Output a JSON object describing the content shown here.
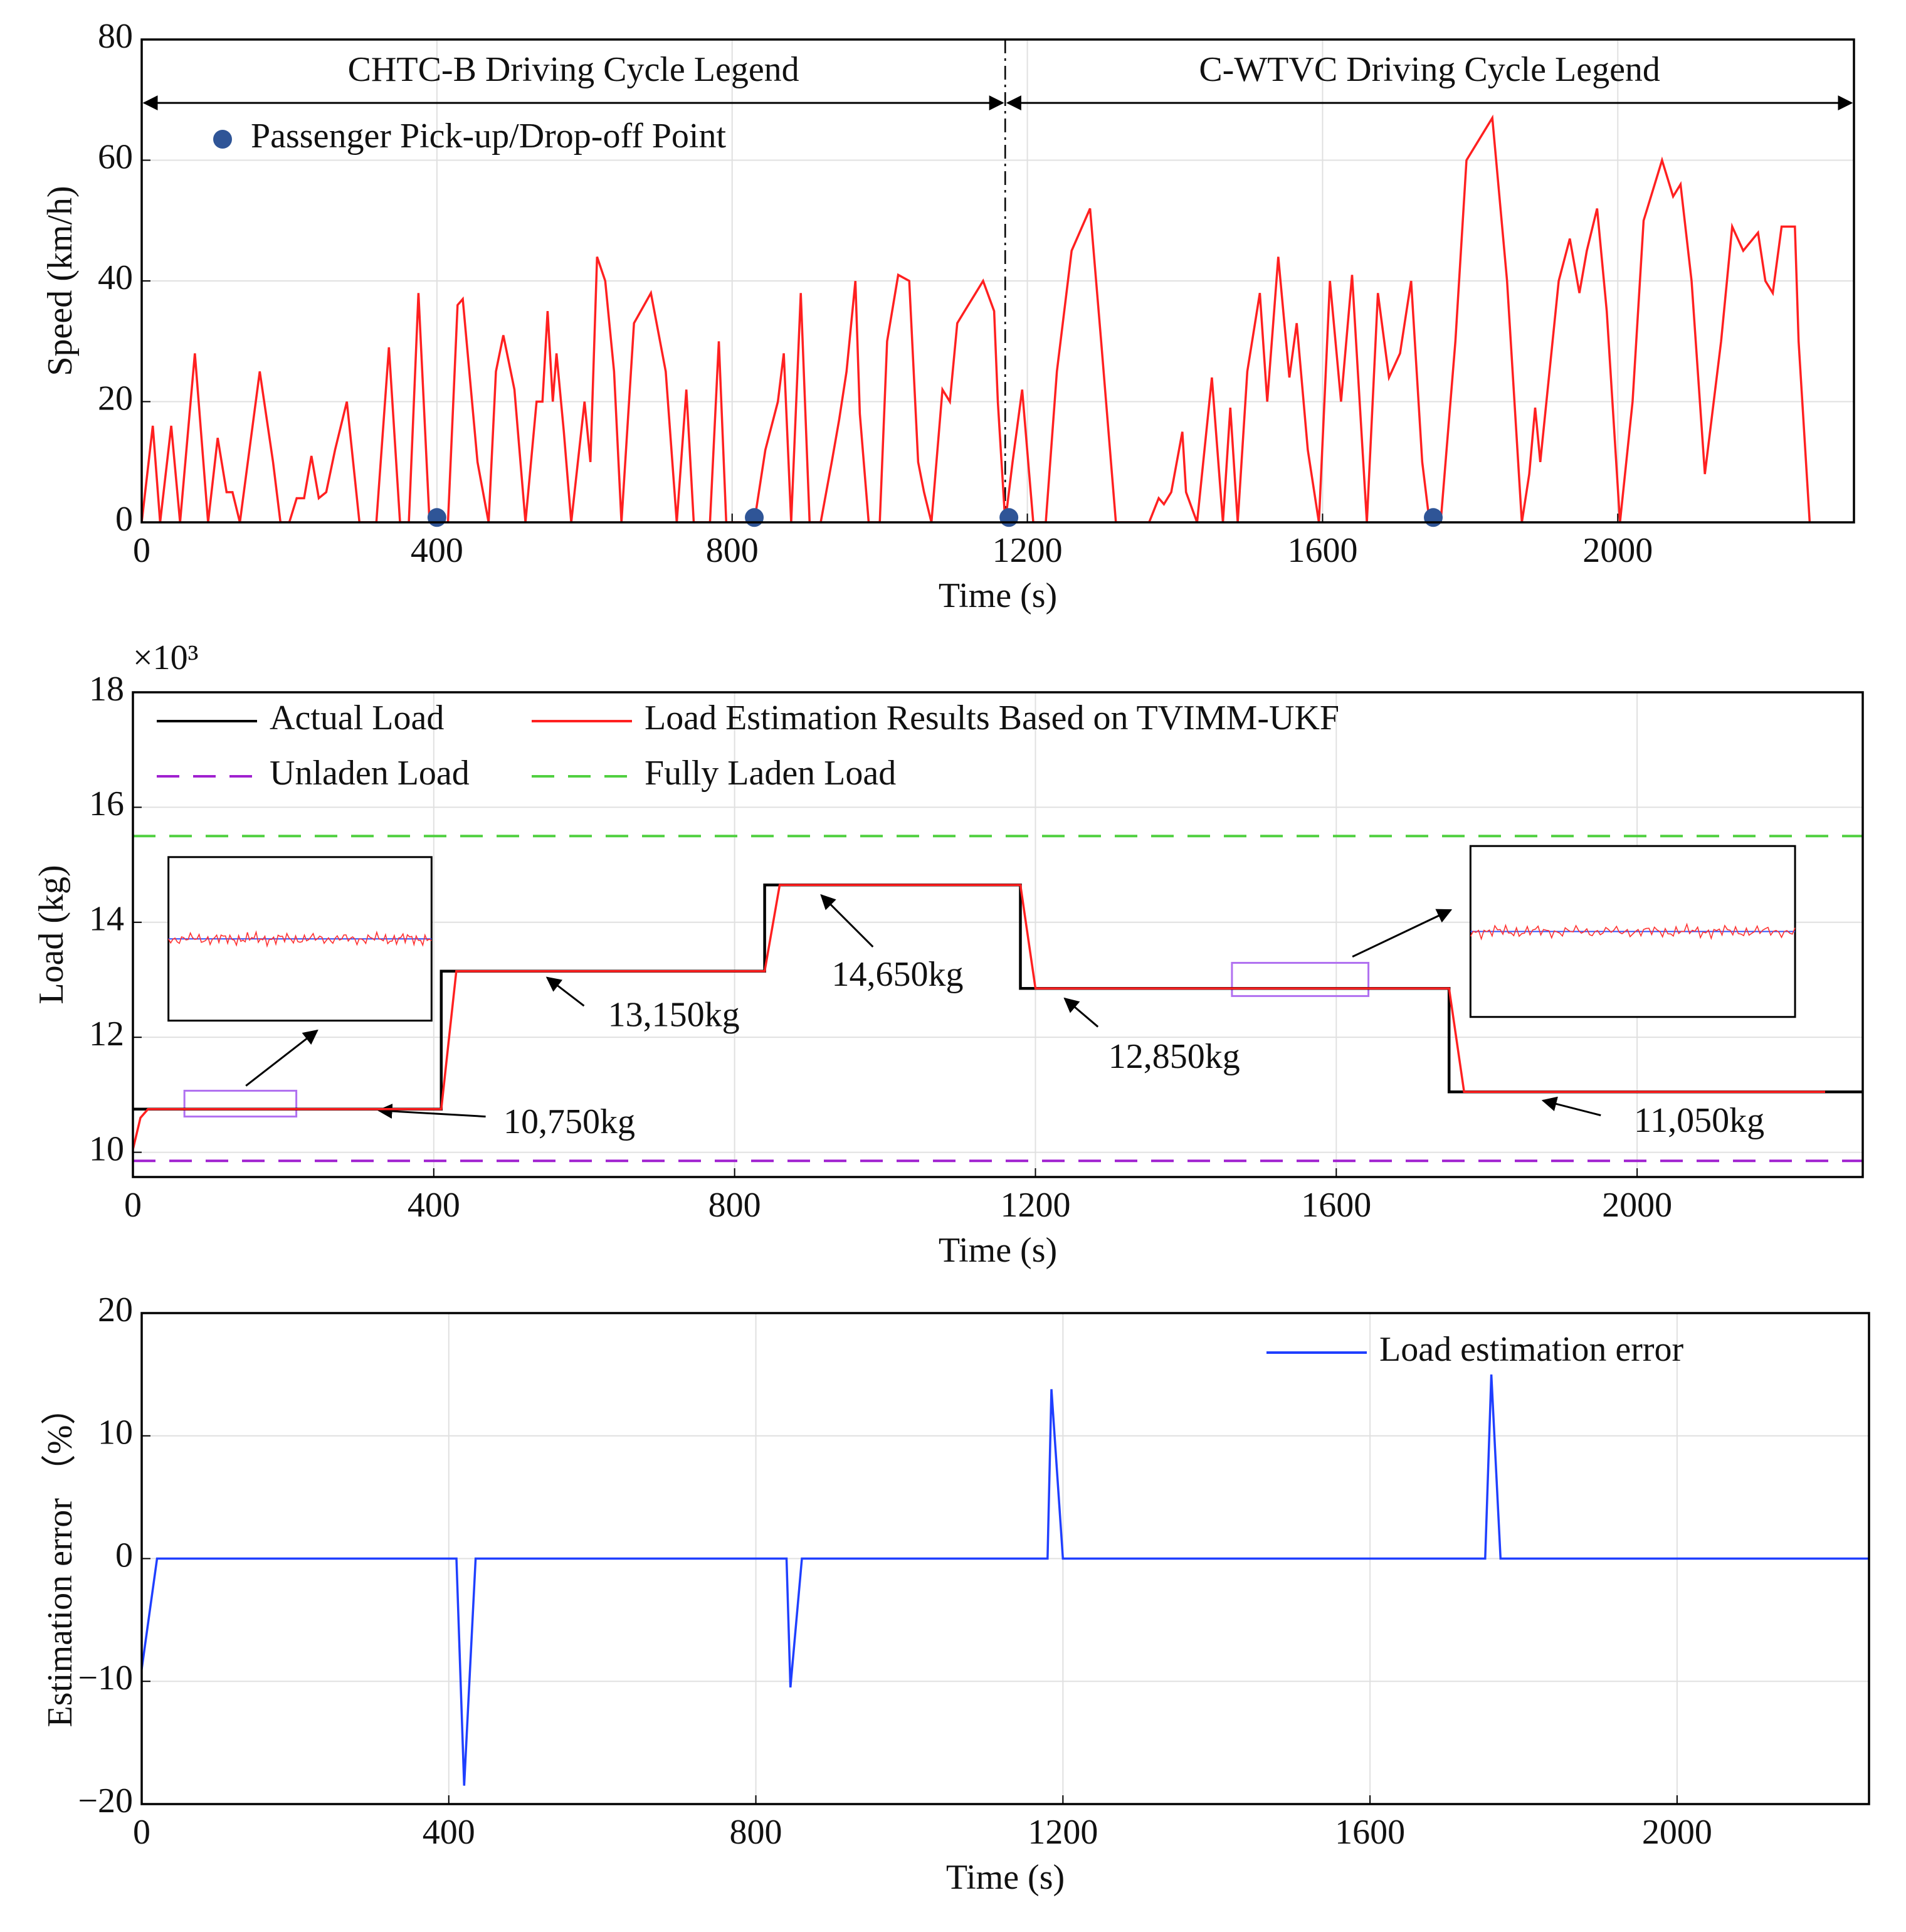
{
  "chart_data": [
    {
      "type": "line",
      "xlabel": "Time (s)",
      "ylabel": "Speed (km/h)",
      "xlim": [
        0,
        2320
      ],
      "xticks": [
        0,
        400,
        800,
        1200,
        1600,
        2000
      ],
      "ylim": [
        0,
        80
      ],
      "yticks": [
        0,
        20,
        40,
        60,
        80
      ],
      "grid": true,
      "annotations": [
        "CHTC-B Driving Cycle Legend",
        "C-WTVC Driving Cycle Legend"
      ],
      "divider_x": 1170,
      "series": [
        {
          "color": "#ff2020",
          "x": [
            0,
            15,
            25,
            40,
            52,
            72,
            90,
            103,
            115,
            123,
            133,
            160,
            178,
            188,
            200,
            210,
            220,
            230,
            240,
            250,
            262,
            278,
            295,
            318,
            335,
            350,
            362,
            375,
            390,
            415,
            428,
            435,
            455,
            470,
            480,
            490,
            505,
            520,
            535,
            543,
            550,
            557,
            562,
            572,
            582,
            600,
            608,
            617,
            628,
            640,
            650,
            667,
            690,
            710,
            725,
            738,
            748,
            770,
            782,
            792,
            830,
            845,
            862,
            870,
            880,
            893,
            905,
            920,
            935,
            945,
            955,
            967,
            973,
            985,
            1000,
            1010,
            1025,
            1040,
            1052,
            1060,
            1070,
            1085,
            1095,
            1105,
            1115,
            1130,
            1140,
            1155,
            1160,
            1170,
            1180,
            1193,
            1208,
            1225,
            1240,
            1260,
            1285,
            1300,
            1320,
            1365,
            1378,
            1385,
            1395,
            1410,
            1415,
            1430,
            1450,
            1465,
            1475,
            1485,
            1498,
            1515,
            1525,
            1540,
            1555,
            1565,
            1580,
            1595,
            1610,
            1625,
            1640,
            1660,
            1675,
            1690,
            1705,
            1720,
            1735,
            1745,
            1760,
            1780,
            1795,
            1830,
            1850,
            1870,
            1880,
            1888,
            1895,
            1920,
            1935,
            1948,
            1958,
            1972,
            1985,
            2003,
            2020,
            2035,
            2060,
            2075,
            2085,
            2100,
            2118,
            2140,
            2155,
            2170,
            2190,
            2200,
            2210,
            2222,
            2240,
            2245,
            2260
          ],
          "values": [
            0,
            16,
            0,
            16,
            0,
            28,
            0,
            14,
            5,
            5,
            0,
            25,
            10,
            0,
            0,
            4,
            4,
            11,
            4,
            5,
            12,
            20,
            0,
            0,
            29,
            0,
            0,
            38,
            0,
            0,
            36,
            37,
            10,
            0,
            25,
            31,
            22,
            0,
            20,
            20,
            35,
            20,
            28,
            15,
            0,
            20,
            10,
            44,
            40,
            25,
            0,
            33,
            38,
            25,
            0,
            22,
            0,
            0,
            30,
            0,
            0,
            12,
            20,
            28,
            0,
            38,
            0,
            0,
            10,
            17,
            25,
            40,
            18,
            0,
            0,
            30,
            41,
            40,
            10,
            5,
            0,
            22,
            20,
            33,
            35,
            38,
            40,
            35,
            20,
            0,
            10,
            22,
            0,
            0,
            25,
            45,
            52,
            30,
            0,
            0,
            4,
            3,
            5,
            15,
            5,
            0,
            24,
            0,
            19,
            0,
            25,
            38,
            20,
            44,
            24,
            33,
            12,
            0,
            40,
            20,
            41,
            0,
            38,
            24,
            28,
            40,
            10,
            0,
            0,
            30,
            60,
            67,
            40,
            0,
            8,
            19,
            10,
            40,
            47,
            38,
            45,
            52,
            35,
            0,
            20,
            50,
            60,
            54,
            56,
            40,
            8,
            30,
            49,
            45,
            48,
            40,
            38,
            49,
            49,
            30,
            0
          ]
        },
        {
          "name": "Passenger Pick-up/Drop-off Point",
          "color": "#2f5597",
          "marker": true,
          "x": [
            400,
            830,
            1175,
            1750
          ],
          "values": [
            0.8,
            0.8,
            0.8,
            0.8
          ]
        }
      ]
    },
    {
      "type": "line",
      "xlabel": "Time (s)",
      "ylabel": "Load (kg)",
      "multiplier": "×10³",
      "xlim": [
        0,
        2300
      ],
      "xticks": [
        0,
        400,
        800,
        1200,
        1600,
        2000
      ],
      "ylim": [
        9.57,
        18
      ],
      "yticks": [
        10,
        12,
        14,
        16,
        18
      ],
      "grid": true,
      "annotations": [
        "10,750kg",
        "13,150kg",
        "14,650kg",
        "12,850kg",
        "11,050kg"
      ],
      "series": [
        {
          "name": "Actual Load",
          "color": "#000000",
          "x": [
            0,
            410,
            410,
            840,
            840,
            1180,
            1180,
            1750,
            1750,
            2300
          ],
          "values": [
            10.75,
            10.75,
            13.15,
            13.15,
            14.65,
            14.65,
            12.85,
            12.85,
            11.05,
            11.05
          ]
        },
        {
          "name": "Load Estimation Results Based on TVIMM-UKF",
          "color": "#ff2020",
          "x": [
            0,
            10,
            20,
            410,
            430,
            840,
            860,
            1180,
            1200,
            1750,
            1770,
            2250
          ],
          "values": [
            10.05,
            10.6,
            10.75,
            10.75,
            13.15,
            13.15,
            14.65,
            14.65,
            12.85,
            12.85,
            11.05,
            11.05
          ]
        },
        {
          "name": "Unladen Load",
          "color": "#a020d0",
          "dash": true,
          "x": [
            0,
            2300
          ],
          "values": [
            9.85,
            9.85
          ]
        },
        {
          "name": "Fully Laden Load",
          "color": "#50d040",
          "dash": true,
          "x": [
            0,
            2300
          ],
          "values": [
            15.5,
            15.5
          ]
        }
      ]
    },
    {
      "type": "line",
      "xlabel": "Time (s)",
      "ylabel": "Estimation error （%）",
      "xlim": [
        0,
        2250
      ],
      "xticks": [
        0,
        400,
        800,
        1200,
        1600,
        2000
      ],
      "ylim": [
        -20,
        20
      ],
      "yticks": [
        {
          "value": -20,
          "label": "−20"
        },
        {
          "value": -10,
          "label": "−10"
        },
        0,
        10,
        20
      ],
      "grid": true,
      "series": [
        {
          "name": "Load estimation error",
          "color": "#1f3fff",
          "x": [
            0,
            20,
            410,
            420,
            435,
            840,
            845,
            860,
            1180,
            1185,
            1200,
            1750,
            1758,
            1770,
            2250
          ],
          "values": [
            -9,
            0,
            0,
            -18.5,
            0,
            0,
            -10.5,
            0,
            0,
            13.8,
            0,
            0,
            15,
            0,
            0
          ]
        }
      ]
    }
  ]
}
